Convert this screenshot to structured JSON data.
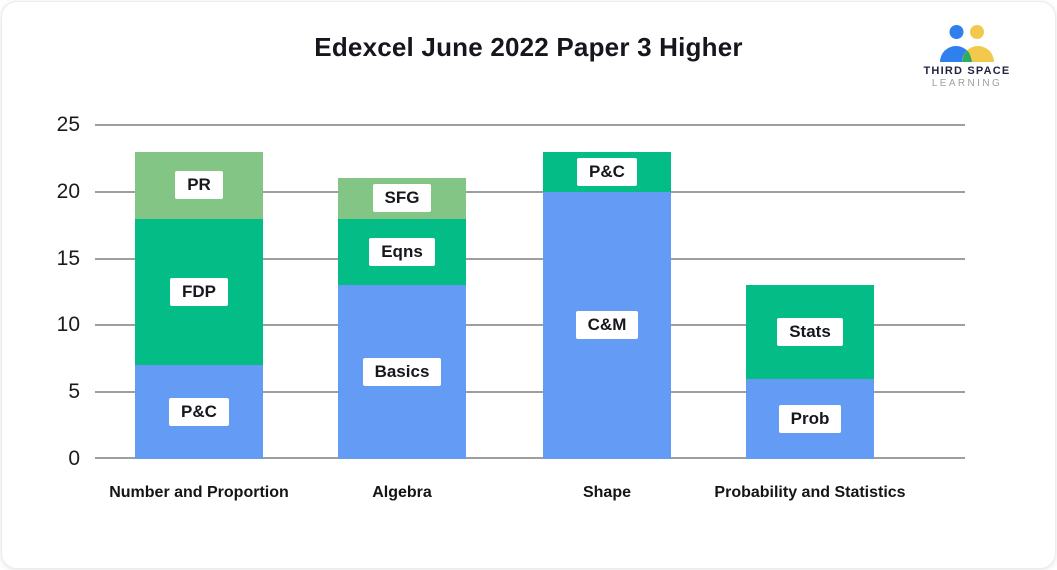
{
  "logo": {
    "line1": "THIRD SPACE",
    "line2": "LEARNING"
  },
  "colors": {
    "bar_blue": "#649CF5",
    "bar_green": "#04BC86",
    "bar_light_green": "#82C585",
    "gridline": "#9e9e9e",
    "title_text": "#16161d",
    "logo_blue": "#2F80ED",
    "logo_yellow": "#F2C94C",
    "logo_green": "#27AE60",
    "logo_text_dark": "#1d2440",
    "logo_text_gray": "#9aa0a6"
  },
  "chart_data": {
    "type": "bar",
    "stacked": true,
    "title": "Edexcel June 2022 Paper 3 Higher",
    "xlabel": "",
    "ylabel": "",
    "ylim": [
      0,
      25
    ],
    "yticks": [
      0,
      5,
      10,
      15,
      20,
      25
    ],
    "grid": true,
    "legend": "none (segments labelled inline with white boxes)",
    "categories": [
      "Number and Proportion",
      "Algebra",
      "Shape",
      "Probability and Statistics"
    ],
    "bars": [
      {
        "category": "Number and Proportion",
        "total": 23,
        "segments": [
          {
            "label": "P&C",
            "value": 7,
            "color": "#649CF5"
          },
          {
            "label": "FDP",
            "value": 11,
            "color": "#04BC86"
          },
          {
            "label": "PR",
            "value": 5,
            "color": "#82C585"
          }
        ]
      },
      {
        "category": "Algebra",
        "total": 21,
        "segments": [
          {
            "label": "Basics",
            "value": 13,
            "color": "#649CF5"
          },
          {
            "label": "Eqns",
            "value": 5,
            "color": "#04BC86"
          },
          {
            "label": "SFG",
            "value": 3,
            "color": "#82C585"
          }
        ]
      },
      {
        "category": "Shape",
        "total": 23,
        "segments": [
          {
            "label": "C&M",
            "value": 20,
            "color": "#649CF5"
          },
          {
            "label": "P&C",
            "value": 3,
            "color": "#04BC86"
          }
        ]
      },
      {
        "category": "Probability and Statistics",
        "total": 13,
        "segments": [
          {
            "label": "Prob",
            "value": 6,
            "color": "#649CF5"
          },
          {
            "label": "Stats",
            "value": 7,
            "color": "#04BC86"
          }
        ]
      }
    ]
  }
}
